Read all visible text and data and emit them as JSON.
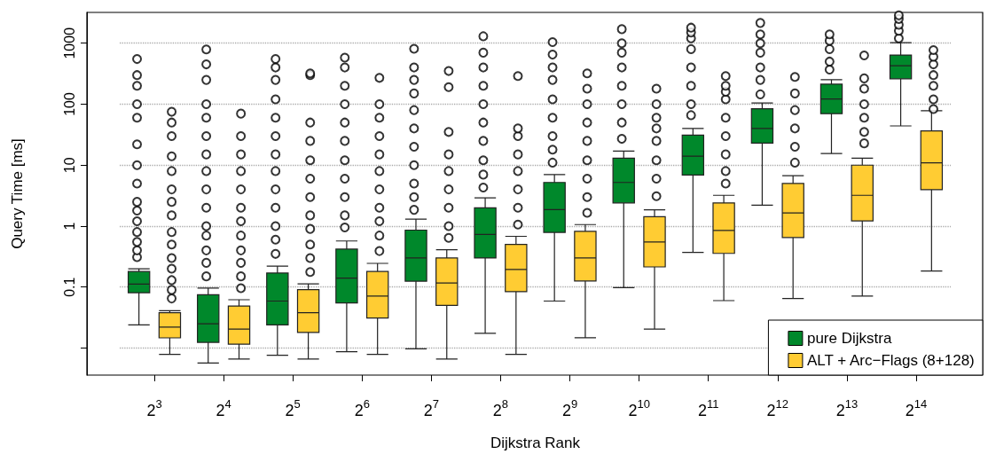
{
  "chart_data": {
    "type": "box",
    "xlabel": "Dijkstra Rank",
    "ylabel": "Query Time [ms]",
    "categories": [
      "2$^{3}$",
      "2$^{4}$",
      "2$^{5}$",
      "2$^{6}$",
      "2$^{7}$",
      "2$^{8}$",
      "2$^{9}$",
      "2$^{10}$",
      "2$^{11}$",
      "2$^{12}$",
      "2$^{13}$",
      "2$^{14}$"
    ],
    "series": [
      {
        "name": "pure Dijkstra",
        "color": "#00882b",
        "boxes": [
          {
            "low": 0.024,
            "q1": 0.081,
            "median": 0.112,
            "q3": 0.18,
            "high": 0.2,
            "outliers": [
              0.31,
              0.4,
              0.55,
              0.8,
              1.2,
              1.8,
              2.5,
              5,
              10,
              22,
              60,
              100,
              200,
              300,
              550
            ]
          },
          {
            "low": 0.0057,
            "q1": 0.0124,
            "median": 0.025,
            "q3": 0.075,
            "high": 0.096,
            "outliers": [
              0.15,
              0.25,
              0.4,
              0.7,
              1,
              2,
              4,
              8,
              15,
              30,
              60,
              100,
              250,
              450,
              790
            ]
          },
          {
            "low": 0.0076,
            "q1": 0.024,
            "median": 0.059,
            "q3": 0.17,
            "high": 0.22,
            "outliers": [
              0.35,
              0.6,
              1,
              2,
              4,
              8,
              15,
              30,
              60,
              120,
              250,
              400,
              550
            ]
          },
          {
            "low": 0.0087,
            "q1": 0.055,
            "median": 0.14,
            "q3": 0.42,
            "high": 0.57,
            "outliers": [
              0.95,
              1.5,
              3,
              6,
              12,
              25,
              50,
              100,
              200,
              400,
              580
            ]
          },
          {
            "low": 0.0097,
            "q1": 0.125,
            "median": 0.3,
            "q3": 0.86,
            "high": 1.3,
            "outliers": [
              1.85,
              3,
              5,
              10,
              20,
              40,
              80,
              150,
              250,
              400,
              810
            ]
          },
          {
            "low": 0.0175,
            "q1": 0.3,
            "median": 0.73,
            "q3": 2,
            "high": 2.9,
            "outliers": [
              4.3,
              7,
              12,
              25,
              50,
              100,
              200,
              400,
              700,
              1300
            ]
          },
          {
            "low": 0.059,
            "q1": 0.79,
            "median": 1.87,
            "q3": 5.2,
            "high": 7,
            "outliers": [
              11,
              18,
              30,
              60,
              120,
              250,
              400,
              650,
              1040
            ]
          },
          {
            "low": 0.098,
            "q1": 2.4,
            "median": 5.2,
            "q3": 13,
            "high": 17,
            "outliers": [
              27,
              50,
              100,
              200,
              400,
              700,
              1000,
              1700
            ]
          },
          {
            "low": 0.37,
            "q1": 6.9,
            "median": 14,
            "q3": 31,
            "high": 40,
            "outliers": [
              66,
              100,
              200,
              400,
              800,
              1200,
              1500,
              1800
            ]
          },
          {
            "low": 2.2,
            "q1": 23,
            "median": 40,
            "q3": 84,
            "high": 105,
            "outliers": [
              145,
              250,
              400,
              700,
              1000,
              1400,
              2150
            ]
          },
          {
            "low": 15.5,
            "q1": 70,
            "median": 122,
            "q3": 213,
            "high": 252,
            "outliers": [
              370,
              500,
              800,
              1100,
              1400
            ]
          },
          {
            "low": 44,
            "q1": 261,
            "median": 427,
            "q3": 640,
            "high": 1020,
            "outliers": [
              1200,
              1600,
              2000,
              2500,
              2870
            ]
          }
        ]
      },
      {
        "name": "ALT + Arc−Flags (8+128)",
        "color": "#ffcc33",
        "boxes": [
          {
            "low": 0.0079,
            "q1": 0.0147,
            "median": 0.022,
            "q3": 0.038,
            "high": 0.041,
            "outliers": [
              0.065,
              0.09,
              0.13,
              0.2,
              0.3,
              0.5,
              0.8,
              1.5,
              2.5,
              4,
              8,
              14,
              30,
              50,
              75
            ]
          },
          {
            "low": 0.0066,
            "q1": 0.0116,
            "median": 0.0205,
            "q3": 0.049,
            "high": 0.062,
            "outliers": [
              0.096,
              0.15,
              0.25,
              0.4,
              0.7,
              1.2,
              2,
              4,
              8,
              15,
              30,
              70
            ]
          },
          {
            "low": 0.0066,
            "q1": 0.018,
            "median": 0.038,
            "q3": 0.091,
            "high": 0.113,
            "outliers": [
              0.177,
              0.3,
              0.5,
              0.9,
              1.5,
              3,
              6,
              12,
              25,
              50,
              300,
              320
            ]
          },
          {
            "low": 0.0079,
            "q1": 0.031,
            "median": 0.071,
            "q3": 0.18,
            "high": 0.245,
            "outliers": [
              0.39,
              0.7,
              1.2,
              2,
              4,
              8,
              15,
              30,
              60,
              100,
              270
            ]
          },
          {
            "low": 0.0066,
            "q1": 0.05,
            "median": 0.117,
            "q3": 0.3,
            "high": 0.41,
            "outliers": [
              0.64,
              1,
              2,
              4,
              8,
              15,
              35,
              190,
              350
            ]
          },
          {
            "low": 0.0079,
            "q1": 0.084,
            "median": 0.195,
            "q3": 0.5,
            "high": 0.68,
            "outliers": [
              1.06,
              2,
              4,
              8,
              15,
              30,
              40,
              290
            ]
          },
          {
            "low": 0.0148,
            "q1": 0.126,
            "median": 0.3,
            "q3": 0.82,
            "high": 1.06,
            "outliers": [
              1.65,
              3,
              6,
              12,
              25,
              50,
              100,
              180,
              320
            ]
          },
          {
            "low": 0.0205,
            "q1": 0.214,
            "median": 0.55,
            "q3": 1.43,
            "high": 1.85,
            "outliers": [
              3.1,
              6,
              12,
              25,
              40,
              60,
              100,
              180
            ]
          },
          {
            "low": 0.06,
            "q1": 0.357,
            "median": 0.85,
            "q3": 2.4,
            "high": 3.2,
            "outliers": [
              5,
              8,
              15,
              30,
              60,
              120,
              160,
              200,
              290
            ]
          },
          {
            "low": 0.065,
            "q1": 0.65,
            "median": 1.65,
            "q3": 5,
            "high": 6.7,
            "outliers": [
              11,
              20,
              40,
              80,
              150,
              280
            ]
          },
          {
            "low": 0.071,
            "q1": 1.22,
            "median": 3.2,
            "q3": 10,
            "high": 13,
            "outliers": [
              22.8,
              35,
              60,
              100,
              180,
              265,
              630
            ]
          },
          {
            "low": 0.183,
            "q1": 3.95,
            "median": 10.9,
            "q3": 36.5,
            "high": 78,
            "outliers": [
              83,
              120,
              200,
              300,
              450,
              600,
              770
            ]
          }
        ]
      }
    ],
    "log": true,
    "ylim": [
      0.0036,
      3200
    ],
    "yticks": [
      {
        "value": 0.01,
        "label": null
      },
      0.1,
      1,
      10,
      100,
      1000
    ],
    "grid": "y",
    "legend": "bottom right",
    "marker": "circle"
  }
}
